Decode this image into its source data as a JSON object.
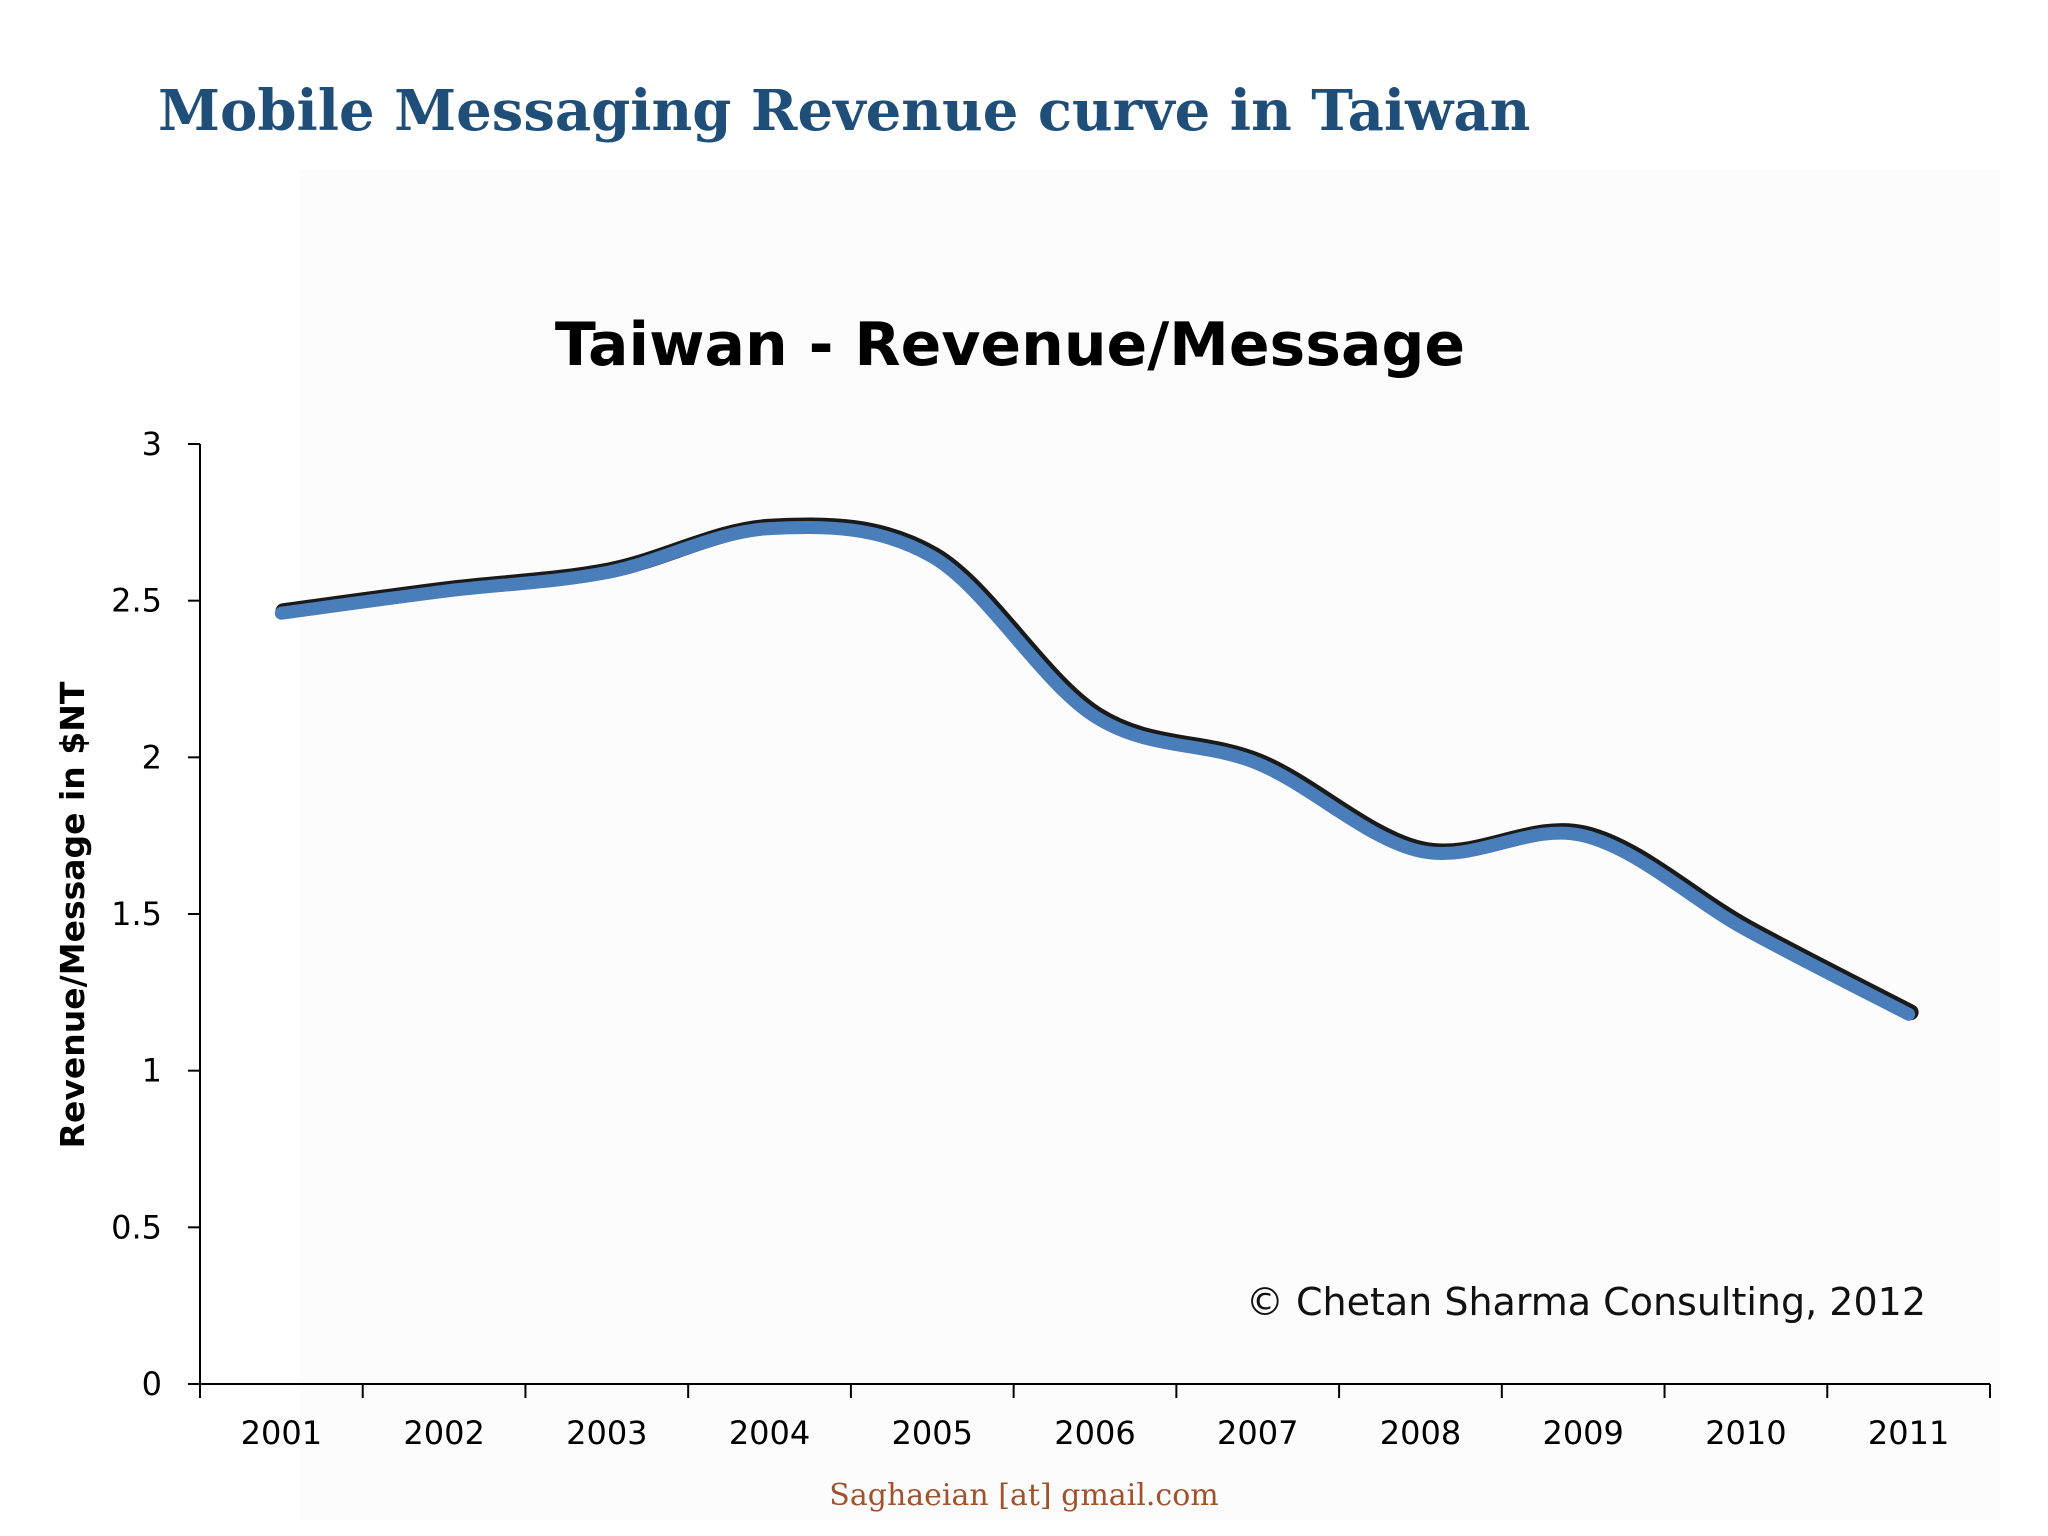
{
  "slide": {
    "title": "Mobile Messaging Revenue curve in Taiwan",
    "footer": "Saghaeian [at] gmail.com"
  },
  "chart_data": {
    "type": "line",
    "title": "Taiwan - Revenue/Message",
    "xlabel": "",
    "ylabel": "Revenue/Message in $NT",
    "categories": [
      "2001",
      "2002",
      "2003",
      "2004",
      "2005",
      "2006",
      "2007",
      "2008",
      "2009",
      "2010",
      "2011"
    ],
    "series": [
      {
        "values": [
          2.46,
          2.53,
          2.59,
          2.73,
          2.64,
          2.13,
          1.98,
          1.7,
          1.75,
          1.45,
          1.18
        ]
      }
    ],
    "yticks": [
      "0",
      "0.5",
      "1",
      "1.5",
      "2",
      "2.5",
      "3"
    ],
    "ylim": [
      0,
      3
    ],
    "grid": false,
    "annotation": "© Chetan Sharma Consulting, 2012",
    "colors": {
      "line": "#4a7ebb",
      "line_shadow": "#1a1a1a",
      "axis": "#000000"
    }
  }
}
